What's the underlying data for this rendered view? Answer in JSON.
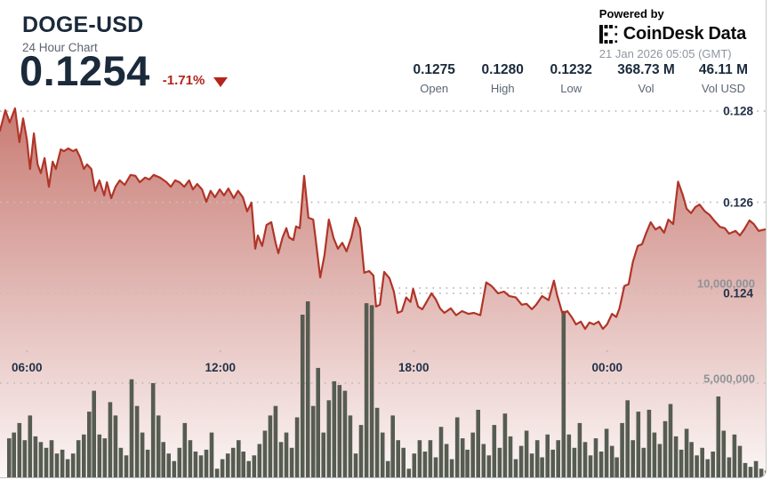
{
  "header": {
    "symbol": "DOGE-USD",
    "subtitle": "24 Hour Chart",
    "price": "0.1254",
    "change": "-1.71%",
    "direction": "down"
  },
  "powered_by": {
    "label": "Powered by",
    "brand_icon": "coindesk-dotted-e-logo",
    "brand_part1": "CoinDesk",
    "brand_part2": "Data",
    "timestamp": "21 Jan 2026 05:05 (GMT)"
  },
  "stats": [
    {
      "value": "0.1275",
      "label": "Open"
    },
    {
      "value": "0.1280",
      "label": "High"
    },
    {
      "value": "0.1232",
      "label": "Low"
    },
    {
      "value": "368.73 M",
      "label": "Vol"
    },
    {
      "value": "46.11 M",
      "label": "Vol USD"
    }
  ],
  "colors": {
    "line": "#b03528",
    "fill_top": "rgba(166,40,28,0.62)",
    "fill_bottom": "rgba(166,40,28,0.03)",
    "bar": "#565c51",
    "grid": "#c6beba",
    "navy_text": "#1b2a3b",
    "gray_text": "#5c6674",
    "light_gray_text": "#8f96a0",
    "red": "#b2261c"
  },
  "chart_data": {
    "type": "line+bar",
    "title": "DOGE-USD 24 Hour Chart",
    "legend": "none",
    "grid": "dotted horizontal",
    "x_window": {
      "start_label": "05:10",
      "end_label": "05:05 (+1 day)",
      "total_minutes": 1435
    },
    "x_ticks": [
      {
        "m": 50,
        "label": "06:00"
      },
      {
        "m": 410,
        "label": "12:00"
      },
      {
        "m": 770,
        "label": "18:00"
      },
      {
        "m": 1130,
        "label": "00:00"
      }
    ],
    "price_axis": {
      "side": "right",
      "ticks": [
        0.128,
        0.126,
        0.124
      ],
      "labels": [
        "0.128",
        "0.126",
        "0.124"
      ]
    },
    "volume_axis": {
      "side": "right",
      "unit": "raw",
      "ticks_millions": [
        10,
        5
      ],
      "labels": [
        "10,000,000",
        "5,000,000"
      ]
    },
    "price_series": {
      "name": "DOGE-USD price",
      "points_m_price": [
        [
          0,
          0.12757
        ],
        [
          10,
          0.12802
        ],
        [
          18,
          0.12775
        ],
        [
          28,
          0.12806
        ],
        [
          36,
          0.12732
        ],
        [
          43,
          0.12784
        ],
        [
          50,
          0.12738
        ],
        [
          56,
          0.12673
        ],
        [
          63,
          0.12751
        ],
        [
          70,
          0.12683
        ],
        [
          76,
          0.12664
        ],
        [
          83,
          0.12697
        ],
        [
          91,
          0.12634
        ],
        [
          98,
          0.12689
        ],
        [
          104,
          0.12673
        ],
        [
          113,
          0.12716
        ],
        [
          119,
          0.12712
        ],
        [
          127,
          0.12718
        ],
        [
          136,
          0.12712
        ],
        [
          142,
          0.12716
        ],
        [
          149,
          0.12699
        ],
        [
          156,
          0.12673
        ],
        [
          162,
          0.12683
        ],
        [
          170,
          0.12673
        ],
        [
          177,
          0.12625
        ],
        [
          185,
          0.12648
        ],
        [
          194,
          0.12615
        ],
        [
          199,
          0.12644
        ],
        [
          207,
          0.12609
        ],
        [
          215,
          0.12634
        ],
        [
          223,
          0.12648
        ],
        [
          232,
          0.12638
        ],
        [
          243,
          0.1266
        ],
        [
          252,
          0.12658
        ],
        [
          260,
          0.12644
        ],
        [
          270,
          0.12654
        ],
        [
          278,
          0.1265
        ],
        [
          286,
          0.1266
        ],
        [
          298,
          0.12654
        ],
        [
          310,
          0.12644
        ],
        [
          318,
          0.12634
        ],
        [
          326,
          0.12648
        ],
        [
          334,
          0.12644
        ],
        [
          343,
          0.12634
        ],
        [
          352,
          0.12648
        ],
        [
          359,
          0.12628
        ],
        [
          367,
          0.1264
        ],
        [
          376,
          0.12628
        ],
        [
          384,
          0.12601
        ],
        [
          392,
          0.12625
        ],
        [
          400,
          0.12611
        ],
        [
          409,
          0.12628
        ],
        [
          417,
          0.12615
        ],
        [
          425,
          0.1263
        ],
        [
          435,
          0.12609
        ],
        [
          443,
          0.12625
        ],
        [
          452,
          0.12611
        ],
        [
          460,
          0.1258
        ],
        [
          468,
          0.12599
        ],
        [
          475,
          0.12498
        ],
        [
          480,
          0.12527
        ],
        [
          488,
          0.12504
        ],
        [
          496,
          0.1255
        ],
        [
          505,
          0.12556
        ],
        [
          513,
          0.12511
        ],
        [
          518,
          0.12488
        ],
        [
          526,
          0.12523
        ],
        [
          533,
          0.12543
        ],
        [
          538,
          0.12523
        ],
        [
          546,
          0.12517
        ],
        [
          551,
          0.12547
        ],
        [
          558,
          0.12543
        ],
        [
          566,
          0.12658
        ],
        [
          574,
          0.12566
        ],
        [
          583,
          0.12562
        ],
        [
          587,
          0.12523
        ],
        [
          596,
          0.12435
        ],
        [
          604,
          0.12484
        ],
        [
          612,
          0.12562
        ],
        [
          621,
          0.12521
        ],
        [
          629,
          0.12498
        ],
        [
          637,
          0.12511
        ],
        [
          645,
          0.12492
        ],
        [
          654,
          0.12523
        ],
        [
          662,
          0.12566
        ],
        [
          670,
          0.12543
        ],
        [
          678,
          0.12445
        ],
        [
          687,
          0.12449
        ],
        [
          695,
          0.12439
        ],
        [
          700,
          0.12371
        ],
        [
          707,
          0.12375
        ],
        [
          715,
          0.12447
        ],
        [
          725,
          0.12433
        ],
        [
          733,
          0.12404
        ],
        [
          740,
          0.12357
        ],
        [
          748,
          0.12361
        ],
        [
          756,
          0.12391
        ],
        [
          764,
          0.12381
        ],
        [
          769,
          0.1241
        ],
        [
          778,
          0.12371
        ],
        [
          786,
          0.12365
        ],
        [
          794,
          0.12381
        ],
        [
          803,
          0.124
        ],
        [
          811,
          0.12387
        ],
        [
          819,
          0.12367
        ],
        [
          827,
          0.12357
        ],
        [
          839,
          0.12367
        ],
        [
          849,
          0.12352
        ],
        [
          860,
          0.12361
        ],
        [
          872,
          0.12355
        ],
        [
          882,
          0.12357
        ],
        [
          894,
          0.12352
        ],
        [
          905,
          0.12424
        ],
        [
          915,
          0.12416
        ],
        [
          927,
          0.124
        ],
        [
          938,
          0.12404
        ],
        [
          948,
          0.12394
        ],
        [
          960,
          0.12391
        ],
        [
          971,
          0.12375
        ],
        [
          980,
          0.12377
        ],
        [
          990,
          0.12365
        ],
        [
          998,
          0.12375
        ],
        [
          1009,
          0.12394
        ],
        [
          1021,
          0.12385
        ],
        [
          1031,
          0.12428
        ],
        [
          1037,
          0.12396
        ],
        [
          1047,
          0.12355
        ],
        [
          1056,
          0.12361
        ],
        [
          1064,
          0.12348
        ],
        [
          1072,
          0.12332
        ],
        [
          1081,
          0.12338
        ],
        [
          1089,
          0.12322
        ],
        [
          1097,
          0.12336
        ],
        [
          1105,
          0.12332
        ],
        [
          1114,
          0.12338
        ],
        [
          1122,
          0.12322
        ],
        [
          1130,
          0.12332
        ],
        [
          1139,
          0.12355
        ],
        [
          1147,
          0.12348
        ],
        [
          1153,
          0.12367
        ],
        [
          1162,
          0.12416
        ],
        [
          1170,
          0.1242
        ],
        [
          1178,
          0.12469
        ],
        [
          1187,
          0.12504
        ],
        [
          1195,
          0.12508
        ],
        [
          1203,
          0.12533
        ],
        [
          1211,
          0.12556
        ],
        [
          1220,
          0.1254
        ],
        [
          1228,
          0.12546
        ],
        [
          1236,
          0.12533
        ],
        [
          1244,
          0.12562
        ],
        [
          1253,
          0.12552
        ],
        [
          1262,
          0.12645
        ],
        [
          1271,
          0.12615
        ],
        [
          1278,
          0.12586
        ],
        [
          1286,
          0.12576
        ],
        [
          1294,
          0.12589
        ],
        [
          1302,
          0.12595
        ],
        [
          1312,
          0.1258
        ],
        [
          1321,
          0.12572
        ],
        [
          1329,
          0.1256
        ],
        [
          1340,
          0.12546
        ],
        [
          1349,
          0.12543
        ],
        [
          1357,
          0.12531
        ],
        [
          1369,
          0.12537
        ],
        [
          1377,
          0.12527
        ],
        [
          1385,
          0.1254
        ],
        [
          1395,
          0.1256
        ],
        [
          1403,
          0.12552
        ],
        [
          1412,
          0.12537
        ],
        [
          1423,
          0.1254
        ],
        [
          1435,
          0.1254
        ]
      ]
    },
    "volume_series": {
      "name": "Volume",
      "unit": "millions",
      "points_m_vol": [
        [
          17,
          2.1
        ],
        [
          26,
          2.4
        ],
        [
          36,
          2.9
        ],
        [
          46,
          2.0
        ],
        [
          56,
          3.3
        ],
        [
          66,
          2.2
        ],
        [
          76,
          1.9
        ],
        [
          86,
          1.6
        ],
        [
          96,
          2.0
        ],
        [
          106,
          1.3
        ],
        [
          116,
          1.5
        ],
        [
          126,
          1.0
        ],
        [
          136,
          1.3
        ],
        [
          146,
          2.0
        ],
        [
          156,
          2.3
        ],
        [
          166,
          3.5
        ],
        [
          175,
          4.6
        ],
        [
          185,
          2.3
        ],
        [
          195,
          2.1
        ],
        [
          205,
          4.0
        ],
        [
          215,
          3.3
        ],
        [
          225,
          1.6
        ],
        [
          235,
          1.2
        ],
        [
          245,
          5.2
        ],
        [
          255,
          3.8
        ],
        [
          265,
          2.4
        ],
        [
          275,
          1.5
        ],
        [
          285,
          5.0
        ],
        [
          295,
          3.3
        ],
        [
          304,
          1.9
        ],
        [
          314,
          1.3
        ],
        [
          324,
          0.9
        ],
        [
          334,
          1.6
        ],
        [
          344,
          2.9
        ],
        [
          354,
          2.0
        ],
        [
          364,
          1.4
        ],
        [
          374,
          1.2
        ],
        [
          384,
          1.5
        ],
        [
          394,
          2.4
        ],
        [
          404,
          0.5
        ],
        [
          414,
          1.0
        ],
        [
          424,
          1.3
        ],
        [
          434,
          1.6
        ],
        [
          444,
          2.0
        ],
        [
          453,
          1.4
        ],
        [
          463,
          0.9
        ],
        [
          473,
          1.2
        ],
        [
          483,
          1.8
        ],
        [
          493,
          2.5
        ],
        [
          503,
          3.3
        ],
        [
          513,
          3.8
        ],
        [
          523,
          1.9
        ],
        [
          533,
          2.4
        ],
        [
          543,
          1.6
        ],
        [
          553,
          3.2
        ],
        [
          563,
          8.6
        ],
        [
          573,
          9.3
        ],
        [
          583,
          3.8
        ],
        [
          592,
          5.8
        ],
        [
          602,
          2.4
        ],
        [
          612,
          4.1
        ],
        [
          622,
          5.1
        ],
        [
          632,
          4.9
        ],
        [
          642,
          4.6
        ],
        [
          652,
          3.3
        ],
        [
          662,
          1.3
        ],
        [
          672,
          2.8
        ],
        [
          682,
          9.2
        ],
        [
          692,
          9.1
        ],
        [
          702,
          3.7
        ],
        [
          712,
          2.4
        ],
        [
          722,
          0.9
        ],
        [
          731,
          3.3
        ],
        [
          741,
          2.0
        ],
        [
          751,
          1.6
        ],
        [
          761,
          0.5
        ],
        [
          771,
          1.3
        ],
        [
          781,
          2.0
        ],
        [
          791,
          1.4
        ],
        [
          801,
          2.0
        ],
        [
          811,
          1.1
        ],
        [
          821,
          2.7
        ],
        [
          831,
          1.8
        ],
        [
          841,
          1.0
        ],
        [
          851,
          3.2
        ],
        [
          861,
          2.1
        ],
        [
          870,
          1.5
        ],
        [
          880,
          2.4
        ],
        [
          890,
          3.6
        ],
        [
          900,
          1.8
        ],
        [
          910,
          1.2
        ],
        [
          920,
          2.8
        ],
        [
          930,
          1.6
        ],
        [
          940,
          3.4
        ],
        [
          950,
          2.2
        ],
        [
          960,
          1.0
        ],
        [
          970,
          1.7
        ],
        [
          980,
          2.5
        ],
        [
          990,
          1.3
        ],
        [
          1000,
          2.0
        ],
        [
          1009,
          1.1
        ],
        [
          1019,
          2.3
        ],
        [
          1029,
          1.5
        ],
        [
          1039,
          2.0
        ],
        [
          1049,
          8.8
        ],
        [
          1059,
          2.3
        ],
        [
          1069,
          1.6
        ],
        [
          1079,
          2.9
        ],
        [
          1089,
          1.9
        ],
        [
          1099,
          1.2
        ],
        [
          1109,
          2.1
        ],
        [
          1119,
          1.4
        ],
        [
          1129,
          2.6
        ],
        [
          1139,
          1.7
        ],
        [
          1148,
          1.1
        ],
        [
          1158,
          2.9
        ],
        [
          1168,
          4.1
        ],
        [
          1178,
          2.0
        ],
        [
          1188,
          3.5
        ],
        [
          1198,
          1.6
        ],
        [
          1208,
          3.6
        ],
        [
          1218,
          2.4
        ],
        [
          1228,
          1.8
        ],
        [
          1238,
          3.0
        ],
        [
          1248,
          3.9
        ],
        [
          1258,
          2.2
        ],
        [
          1268,
          1.5
        ],
        [
          1278,
          2.6
        ],
        [
          1287,
          1.9
        ],
        [
          1297,
          1.2
        ],
        [
          1307,
          1.6
        ],
        [
          1317,
          1.0
        ],
        [
          1327,
          1.4
        ],
        [
          1337,
          4.3
        ],
        [
          1347,
          2.5
        ],
        [
          1357,
          1.1
        ],
        [
          1367,
          2.3
        ],
        [
          1377,
          1.7
        ],
        [
          1387,
          0.8
        ],
        [
          1397,
          0.6
        ],
        [
          1407,
          0.9
        ],
        [
          1417,
          0.5
        ],
        [
          1427,
          0.4
        ]
      ]
    }
  }
}
